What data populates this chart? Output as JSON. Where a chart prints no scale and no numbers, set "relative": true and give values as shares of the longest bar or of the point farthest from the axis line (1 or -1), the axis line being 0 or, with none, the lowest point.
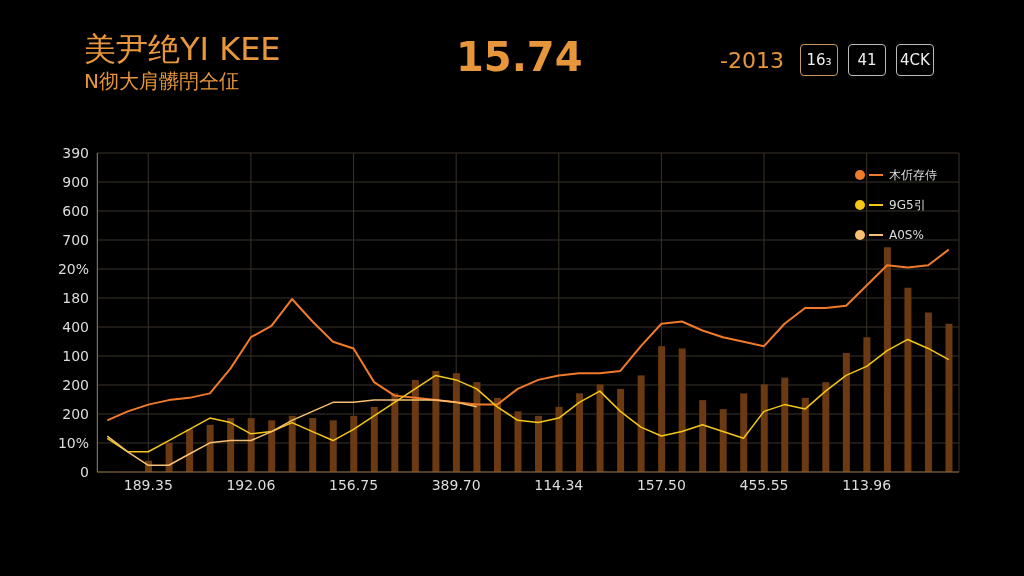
{
  "chart_data": {
    "type": "line",
    "title": "美尹绝YI KEE",
    "subtitle": "N彻大肩髒閅仝佂",
    "annotations": [
      "15.74",
      "-2013",
      "16₃",
      "41",
      "4CK",
      "390",
      "900",
      "600",
      "700",
      "20%",
      "180",
      "400",
      "100",
      "200",
      "200",
      "10%",
      "0"
    ],
    "relative": true,
    "categories": [
      null,
      null,
      "189.35",
      null,
      null,
      null,
      null,
      "192.06",
      null,
      null,
      null,
      null,
      "156.75",
      null,
      null,
      null,
      null,
      "389.70",
      null,
      null,
      null,
      null,
      "114.34",
      null,
      null,
      null,
      null,
      "157.50",
      null,
      null,
      null,
      null,
      "455.55",
      null,
      null,
      null,
      null,
      "113.96",
      null,
      null,
      null,
      null
    ],
    "grid": true,
    "legend": "top right",
    "series": [
      {
        "type": "bar",
        "color": "#6b3a12",
        "values": [
          null,
          null,
          0.05,
          0.13,
          0.19,
          0.21,
          0.24,
          0.24,
          0.23,
          0.25,
          0.24,
          0.23,
          0.25,
          0.29,
          0.35,
          0.41,
          0.45,
          0.44,
          0.4,
          0.33,
          0.27,
          0.25,
          0.29,
          0.35,
          0.39,
          0.37,
          0.43,
          0.56,
          0.55,
          0.32,
          0.28,
          0.35,
          0.39,
          0.42,
          0.33,
          0.4,
          0.53,
          0.6,
          1,
          0.82,
          0.71,
          0.66
        ]
      },
      {
        "name": "木伒存侍",
        "color": "#f07a2a",
        "values": [
          0.23,
          0.27,
          0.3,
          0.32,
          0.33,
          0.35,
          0.46,
          0.6,
          0.65,
          0.77,
          0.67,
          0.58,
          0.55,
          0.4,
          0.34,
          0.33,
          0.32,
          0.31,
          0.3,
          0.3,
          0.37,
          0.41,
          0.43,
          0.44,
          0.44,
          0.45,
          0.56,
          0.66,
          0.67,
          0.63,
          0.6,
          0.58,
          0.56,
          0.66,
          0.73,
          0.73,
          0.74,
          0.83,
          0.92,
          0.91,
          0.92,
          0.99
        ]
      },
      {
        "name": "9G5引",
        "color": "#f5c518",
        "values": [
          0.15,
          0.09,
          0.09,
          0.14,
          0.19,
          0.24,
          0.22,
          0.17,
          0.18,
          0.22,
          0.18,
          0.14,
          0.19,
          0.25,
          0.31,
          0.37,
          0.43,
          0.41,
          0.37,
          0.29,
          0.23,
          0.22,
          0.24,
          0.31,
          0.36,
          0.27,
          0.2,
          0.16,
          0.18,
          0.21,
          0.18,
          0.15,
          0.27,
          0.3,
          0.28,
          0.36,
          0.43,
          0.47,
          0.54,
          0.59,
          0.55,
          0.5
        ]
      },
      {
        "name": "A0S%",
        "color": "#f8c070",
        "values": [
          0.16,
          0.09,
          0.03,
          0.03,
          0.08,
          0.13,
          0.14,
          0.14,
          0.18,
          0.23,
          0.27,
          0.31,
          0.31,
          0.32,
          0.32,
          0.32,
          0.32,
          0.31,
          0.29,
          null,
          null,
          null,
          null,
          null,
          null,
          null,
          null,
          null,
          null,
          null,
          null,
          null,
          null,
          null,
          null,
          null,
          null,
          null,
          null,
          null,
          null,
          null
        ]
      }
    ]
  }
}
